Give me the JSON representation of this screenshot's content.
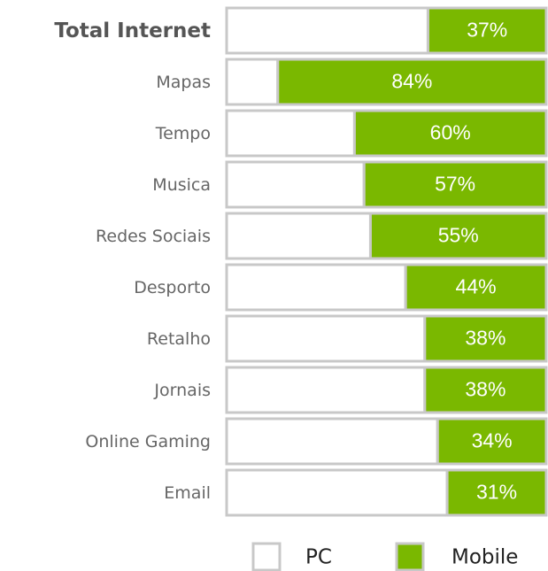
{
  "chart_data": {
    "type": "stacked-bar-100",
    "orientation": "horizontal",
    "categories": [
      "Total Internet",
      "Mapas",
      "Tempo",
      "Musica",
      "Redes Sociais",
      "Desporto",
      "Retalho",
      "Jornais",
      "Online Gaming",
      "Email"
    ],
    "series": [
      {
        "name": "PC",
        "color": "#ffffff",
        "values": [
          63,
          16,
          40,
          43,
          45,
          56,
          62,
          62,
          66,
          69
        ]
      },
      {
        "name": "Mobile",
        "color": "#7ab800",
        "values": [
          37,
          84,
          60,
          57,
          55,
          44,
          38,
          38,
          34,
          31
        ],
        "value_labels": [
          "37%",
          "84%",
          "60%",
          "57%",
          "55%",
          "44%",
          "38%",
          "38%",
          "34%",
          "31%"
        ]
      }
    ],
    "xlim": [
      0,
      100
    ],
    "legend": "bottom"
  }
}
